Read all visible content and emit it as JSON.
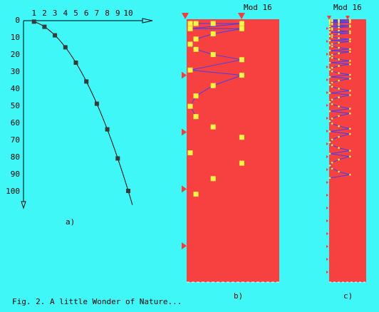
{
  "colors": {
    "background": "#3ff7f7",
    "panel": "#f74141",
    "line": "#4040f0",
    "marker_yellow": "#f7f741",
    "marker_red": "#f73a3a",
    "axis": "#000000"
  },
  "panel_a": {
    "label": "a)",
    "x_ticks": [
      "1",
      "2",
      "3",
      "4",
      "5",
      "6",
      "7",
      "8",
      "9",
      "10"
    ],
    "y_ticks": [
      "0",
      "10",
      "20",
      "30",
      "40",
      "50",
      "60",
      "70",
      "80",
      "90",
      "100"
    ],
    "points_x": [
      1,
      2,
      3,
      4,
      5,
      6,
      7,
      8,
      9,
      10
    ],
    "points_y": [
      1,
      4,
      9,
      16,
      25,
      36,
      49,
      64,
      81,
      100
    ]
  },
  "panel_b": {
    "title": "Mod 16",
    "label": "b)",
    "modulus": 16
  },
  "panel_c": {
    "title": "Mod 16",
    "label": "c)"
  },
  "caption": "Fig. 2. A little Wonder of Nature..."
}
